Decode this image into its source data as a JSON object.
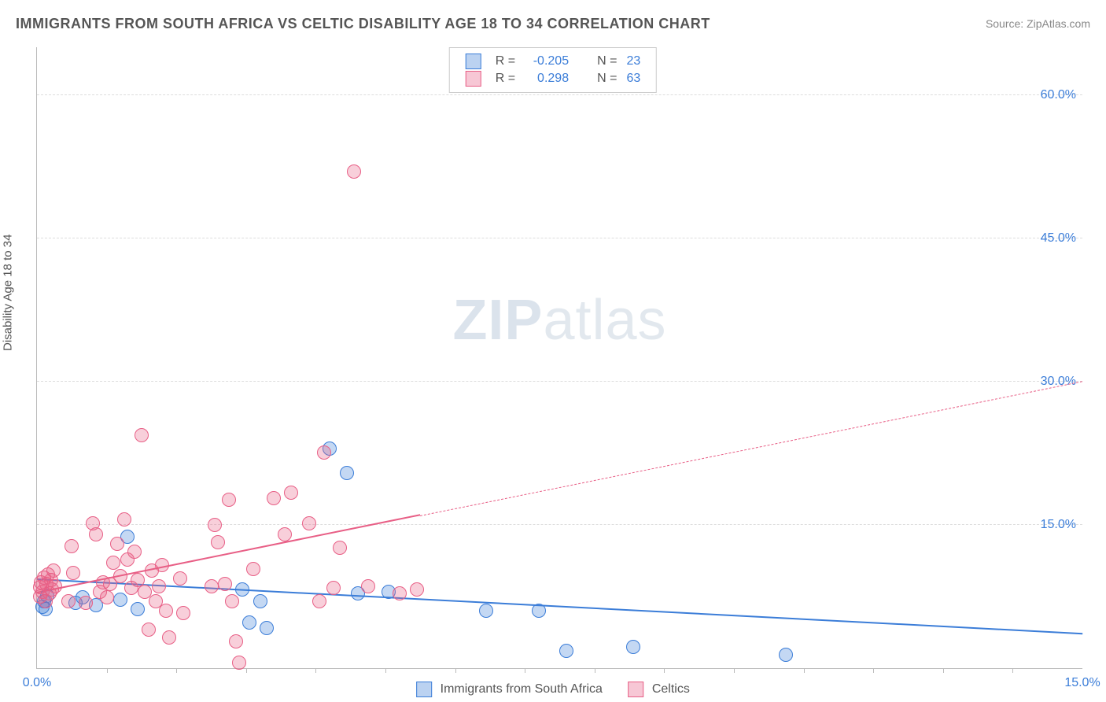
{
  "title": "IMMIGRANTS FROM SOUTH AFRICA VS CELTIC DISABILITY AGE 18 TO 34 CORRELATION CHART",
  "source": "Source: ZipAtlas.com",
  "watermark_bold": "ZIP",
  "watermark_rest": "atlas",
  "ylabel": "Disability Age 18 to 34",
  "chart": {
    "type": "scatter",
    "background_color": "#ffffff",
    "grid_color": "#dddddd",
    "axis_color": "#bbbbbb",
    "xlim": [
      0.0,
      15.0
    ],
    "ylim": [
      0.0,
      65.0
    ],
    "yticks": [
      {
        "v": 15.0,
        "label": "15.0%"
      },
      {
        "v": 30.0,
        "label": "30.0%"
      },
      {
        "v": 45.0,
        "label": "45.0%"
      },
      {
        "v": 60.0,
        "label": "60.0%"
      }
    ],
    "xticks": [
      {
        "v": 0.0,
        "label": "0.0%"
      },
      {
        "v": 15.0,
        "label": "15.0%"
      }
    ],
    "xtick_marks": [
      1,
      2,
      3,
      4,
      5,
      6,
      7,
      8,
      9,
      10,
      11,
      12,
      13,
      14
    ],
    "marker_radius": 9,
    "marker_border_width": 1.5,
    "marker_fill_opacity": 0.3,
    "series": [
      {
        "id": "blue",
        "name": "Immigrants from South Africa",
        "color": "#3b7dd8",
        "R_label": "R =",
        "R": "-0.205",
        "N_label": "N =",
        "N": "23",
        "trend": {
          "y_at_x0": 9.2,
          "y_at_xmax": 3.5,
          "solid_until_x": 15.0
        },
        "points": [
          [
            0.08,
            6.4
          ],
          [
            0.1,
            7.0
          ],
          [
            0.12,
            6.2
          ],
          [
            0.15,
            7.6
          ],
          [
            0.55,
            6.8
          ],
          [
            0.65,
            7.4
          ],
          [
            0.85,
            6.6
          ],
          [
            1.2,
            7.2
          ],
          [
            1.3,
            13.8
          ],
          [
            1.45,
            6.2
          ],
          [
            2.95,
            8.2
          ],
          [
            3.05,
            4.8
          ],
          [
            3.2,
            7.0
          ],
          [
            3.3,
            4.2
          ],
          [
            4.2,
            23.0
          ],
          [
            4.45,
            20.4
          ],
          [
            4.6,
            7.8
          ],
          [
            5.05,
            8.0
          ],
          [
            6.45,
            6.0
          ],
          [
            7.2,
            6.0
          ],
          [
            7.6,
            1.8
          ],
          [
            8.55,
            2.2
          ],
          [
            10.75,
            1.4
          ]
        ]
      },
      {
        "id": "pink",
        "name": "Celtics",
        "color": "#e85f86",
        "R_label": "R =",
        "R": "0.298",
        "N_label": "N =",
        "N": "63",
        "trend": {
          "y_at_x0": 7.8,
          "y_at_xmax": 30.0,
          "solid_until_x": 5.5
        },
        "points": [
          [
            0.04,
            8.5
          ],
          [
            0.05,
            7.5
          ],
          [
            0.06,
            9.0
          ],
          [
            0.08,
            8.0
          ],
          [
            0.1,
            9.5
          ],
          [
            0.12,
            7.0
          ],
          [
            0.14,
            8.8
          ],
          [
            0.16,
            9.8
          ],
          [
            0.18,
            7.8
          ],
          [
            0.2,
            9.2
          ],
          [
            0.22,
            8.2
          ],
          [
            0.24,
            10.2
          ],
          [
            0.26,
            8.6
          ],
          [
            0.45,
            7.0
          ],
          [
            0.5,
            12.8
          ],
          [
            0.52,
            10.0
          ],
          [
            0.7,
            6.8
          ],
          [
            0.8,
            15.2
          ],
          [
            0.85,
            14.0
          ],
          [
            0.9,
            8.0
          ],
          [
            0.95,
            9.0
          ],
          [
            1.0,
            7.4
          ],
          [
            1.05,
            8.8
          ],
          [
            1.1,
            11.0
          ],
          [
            1.15,
            13.0
          ],
          [
            1.2,
            9.6
          ],
          [
            1.25,
            15.6
          ],
          [
            1.3,
            11.4
          ],
          [
            1.35,
            8.4
          ],
          [
            1.4,
            12.2
          ],
          [
            1.45,
            9.2
          ],
          [
            1.5,
            24.4
          ],
          [
            1.55,
            8.0
          ],
          [
            1.6,
            4.0
          ],
          [
            1.65,
            10.2
          ],
          [
            1.7,
            7.0
          ],
          [
            1.75,
            8.6
          ],
          [
            1.8,
            10.8
          ],
          [
            1.85,
            6.0
          ],
          [
            1.9,
            3.2
          ],
          [
            2.05,
            9.4
          ],
          [
            2.1,
            5.8
          ],
          [
            2.5,
            8.6
          ],
          [
            2.55,
            15.0
          ],
          [
            2.6,
            13.2
          ],
          [
            2.7,
            8.8
          ],
          [
            2.75,
            17.6
          ],
          [
            2.8,
            7.0
          ],
          [
            2.85,
            2.8
          ],
          [
            2.9,
            0.6
          ],
          [
            3.1,
            10.4
          ],
          [
            3.4,
            17.8
          ],
          [
            3.55,
            14.0
          ],
          [
            3.65,
            18.4
          ],
          [
            3.9,
            15.2
          ],
          [
            4.05,
            7.0
          ],
          [
            4.12,
            22.6
          ],
          [
            4.25,
            8.4
          ],
          [
            4.35,
            12.6
          ],
          [
            4.55,
            52.0
          ],
          [
            4.75,
            8.6
          ],
          [
            5.2,
            7.8
          ],
          [
            5.45,
            8.2
          ]
        ]
      }
    ]
  },
  "legend_bottom": {
    "item1": "Immigrants from South Africa",
    "item2": "Celtics"
  }
}
